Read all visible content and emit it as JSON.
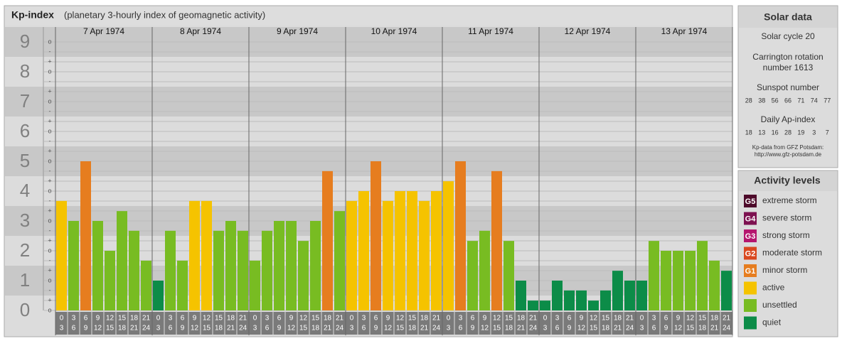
{
  "title": "Kp-index",
  "subtitle": "(planetary 3-hourly index of geomagnetic activity)",
  "chart_data": {
    "type": "bar",
    "categories": [
      "7 Apr 1974",
      "8 Apr 1974",
      "9 Apr 1974",
      "10 Apr 1974",
      "11 Apr 1974",
      "12 Apr 1974",
      "13 Apr 1974"
    ],
    "values": [
      [
        3.67,
        3,
        5,
        3,
        2,
        3.33,
        2.67,
        1.67
      ],
      [
        1,
        2.67,
        1.67,
        3.67,
        3.67,
        2.67,
        3,
        2.67
      ],
      [
        1.67,
        2.67,
        3,
        3,
        2.33,
        3,
        4.67,
        3.33
      ],
      [
        3.67,
        4,
        5,
        3.67,
        4,
        4,
        3.67,
        4
      ],
      [
        4.33,
        5,
        2.33,
        2.67,
        4.67,
        2.33,
        1,
        0.33
      ],
      [
        0.33,
        1,
        0.67,
        0.67,
        0.33,
        0.67,
        1.33,
        1
      ],
      [
        1,
        2.33,
        2,
        2,
        2,
        2.33,
        1.67,
        1.33
      ]
    ],
    "hour_labels": [
      [
        "0",
        "3"
      ],
      [
        "3",
        "6"
      ],
      [
        "6",
        "9"
      ],
      [
        "9",
        "12"
      ],
      [
        "12",
        "15"
      ],
      [
        "15",
        "18"
      ],
      [
        "18",
        "21"
      ],
      [
        "21",
        "24"
      ]
    ],
    "ylim": [
      0,
      9.5
    ],
    "yticks": [
      0,
      1,
      2,
      3,
      4,
      5,
      6,
      7,
      8,
      9
    ],
    "minor_ticks": [
      {
        "value": 0,
        "label": "o"
      },
      {
        "value": 0.333,
        "label": "+"
      },
      {
        "value": 0.667,
        "label": "-"
      },
      {
        "value": 1,
        "label": "o"
      },
      {
        "value": 1.333,
        "label": "+"
      },
      {
        "value": 1.667,
        "label": "-"
      },
      {
        "value": 2,
        "label": "o"
      },
      {
        "value": 2.333,
        "label": "+"
      },
      {
        "value": 2.667,
        "label": "-"
      },
      {
        "value": 3,
        "label": "o"
      },
      {
        "value": 3.333,
        "label": "+"
      },
      {
        "value": 3.667,
        "label": "-"
      },
      {
        "value": 4,
        "label": "o"
      },
      {
        "value": 4.333,
        "label": "+"
      },
      {
        "value": 4.667,
        "label": "-"
      },
      {
        "value": 5,
        "label": "o"
      },
      {
        "value": 5.333,
        "label": "+"
      },
      {
        "value": 5.667,
        "label": "-"
      },
      {
        "value": 6,
        "label": "o"
      },
      {
        "value": 6.333,
        "label": "+"
      },
      {
        "value": 6.667,
        "label": "-"
      },
      {
        "value": 7,
        "label": "o"
      },
      {
        "value": 7.333,
        "label": "+"
      },
      {
        "value": 7.667,
        "label": "-"
      },
      {
        "value": 8,
        "label": "o"
      },
      {
        "value": 8.333,
        "label": "+"
      },
      {
        "value": 8.667,
        "label": "-"
      },
      {
        "value": 9,
        "label": "o"
      }
    ],
    "grid": true,
    "levels_title": "Activity levels",
    "levels": [
      {
        "code": "G5",
        "name": "extreme storm",
        "color": "#4d0a2a",
        "min": 8.5
      },
      {
        "code": "G4",
        "name": "severe storm",
        "color": "#7d1150",
        "min": 7.5
      },
      {
        "code": "G3",
        "name": "strong storm",
        "color": "#b5166e",
        "min": 6.5
      },
      {
        "code": "G2",
        "name": "moderate storm",
        "color": "#d9481f",
        "min": 5.5
      },
      {
        "code": "G1",
        "name": "minor storm",
        "color": "#e67d1f",
        "min": 4.5
      },
      {
        "name": "active",
        "color": "#f5c300",
        "min": 3.5
      },
      {
        "name": "unsettled",
        "color": "#78bc22",
        "min": 1.5
      },
      {
        "name": "quiet",
        "color": "#0c8c48",
        "min": 0
      }
    ]
  },
  "solar": {
    "title": "Solar data",
    "cycle": "Solar cycle 20",
    "carrington": [
      "Carrington rotation",
      "number 1613"
    ],
    "sunspot_title": "Sunspot number",
    "sunspot": [
      28,
      38,
      56,
      66,
      71,
      74,
      77
    ],
    "ap_title": "Daily Ap-index",
    "ap": [
      18,
      13,
      16,
      28,
      19,
      3,
      7
    ],
    "source": [
      "Kp-data from GFZ Potsdam:",
      "http://www.gfz-potsdam.de"
    ]
  }
}
